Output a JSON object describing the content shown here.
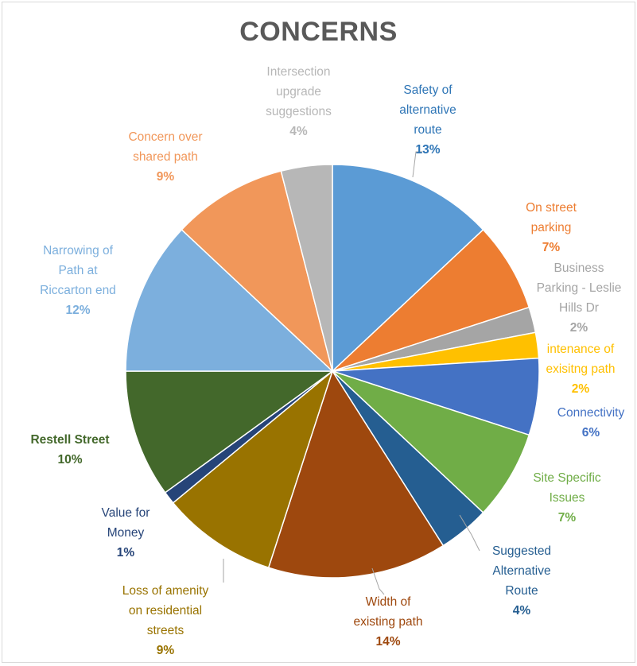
{
  "chart_data": {
    "type": "pie",
    "title": "CONCERNS",
    "slices": [
      {
        "label": "Safety of\nalternative\nroute",
        "value": 13,
        "pct_label": "13%",
        "color": "#5b9bd5",
        "label_color": "#2e75b6",
        "label_bold": false
      },
      {
        "label": "On street\nparking",
        "value": 7,
        "pct_label": "7%",
        "color": "#ed7d31",
        "label_color": "#ed7d31",
        "label_bold": false
      },
      {
        "label": "Business\nParking - Leslie\nHills Dr",
        "value": 2,
        "pct_label": "2%",
        "color": "#a5a5a5",
        "label_color": "#a5a5a5",
        "label_bold": false
      },
      {
        "label": "intenance of\nexisitng path",
        "value": 2,
        "pct_label": "2%",
        "color": "#ffc000",
        "label_color": "#ffc000",
        "label_bold": false
      },
      {
        "label": "Connectivity",
        "value": 6,
        "pct_label": "6%",
        "color": "#4472c4",
        "label_color": "#4472c4",
        "label_bold": false
      },
      {
        "label": "Site Specific\nIssues",
        "value": 7,
        "pct_label": "7%",
        "color": "#70ad47",
        "label_color": "#70ad47",
        "label_bold": false
      },
      {
        "label": "Suggested\nAlternative\nRoute",
        "value": 4,
        "pct_label": "4%",
        "color": "#255e91",
        "label_color": "#255e91",
        "label_bold": false
      },
      {
        "label": "Width of\nexisting  path",
        "value": 14,
        "pct_label": "14%",
        "color": "#9e480e",
        "label_color": "#9e480e",
        "label_bold": false
      },
      {
        "label": "Loss of amenity\non residential\nstreets",
        "value": 9,
        "pct_label": "9%",
        "color": "#997300",
        "label_color": "#997300",
        "label_bold": false
      },
      {
        "label": "Value for\nMoney",
        "value": 1,
        "pct_label": "1%",
        "color": "#264478",
        "label_color": "#264478",
        "label_bold": false
      },
      {
        "label": "Restell Street",
        "value": 10,
        "pct_label": "10%",
        "color": "#43682b",
        "label_color": "#43682b",
        "label_bold": true
      },
      {
        "label": "Narrowing of\nPath at\nRiccarton  end",
        "value": 12,
        "pct_label": "12%",
        "color": "#7cafdd",
        "label_color": "#7cafdd",
        "label_bold": false
      },
      {
        "label": "Concern over\nshared path",
        "value": 9,
        "pct_label": "9%",
        "color": "#f1975a",
        "label_color": "#f1975a",
        "label_bold": false
      },
      {
        "label": "Intersection\nupgrade\nsuggestions",
        "value": 4,
        "pct_label": "4%",
        "color": "#b7b7b7",
        "label_color": "#b7b7b7",
        "label_bold": false
      }
    ],
    "legend": "none"
  }
}
